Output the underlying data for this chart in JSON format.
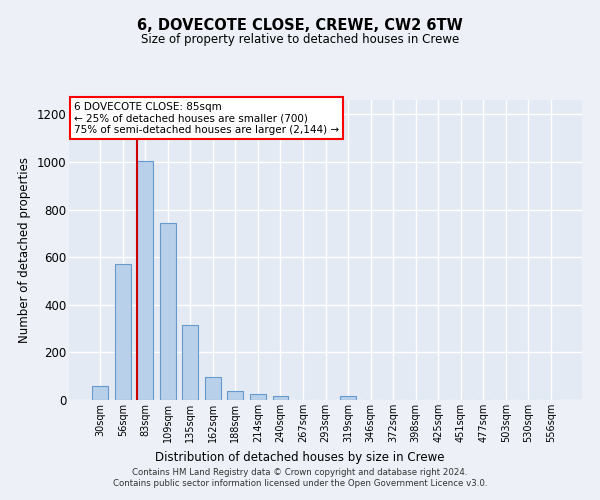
{
  "title1": "6, DOVECOTE CLOSE, CREWE, CW2 6TW",
  "title2": "Size of property relative to detached houses in Crewe",
  "xlabel": "Distribution of detached houses by size in Crewe",
  "ylabel": "Number of detached properties",
  "footer1": "Contains HM Land Registry data © Crown copyright and database right 2024.",
  "footer2": "Contains public sector information licensed under the Open Government Licence v3.0.",
  "annotation_title": "6 DOVECOTE CLOSE: 85sqm",
  "annotation_line2": "← 25% of detached houses are smaller (700)",
  "annotation_line3": "75% of semi-detached houses are larger (2,144) →",
  "bar_color": "#b8d0ea",
  "bar_edge_color": "#6699cc",
  "vline_color": "#cc0000",
  "vline_x_index": 2,
  "categories": [
    "30sqm",
    "56sqm",
    "83sqm",
    "109sqm",
    "135sqm",
    "162sqm",
    "188sqm",
    "214sqm",
    "240sqm",
    "267sqm",
    "293sqm",
    "319sqm",
    "346sqm",
    "372sqm",
    "398sqm",
    "425sqm",
    "451sqm",
    "477sqm",
    "503sqm",
    "530sqm",
    "556sqm"
  ],
  "values": [
    60,
    570,
    1005,
    745,
    315,
    95,
    38,
    25,
    15,
    0,
    0,
    15,
    0,
    0,
    0,
    0,
    0,
    0,
    0,
    0,
    0
  ],
  "ylim": [
    0,
    1260
  ],
  "yticks": [
    0,
    200,
    400,
    600,
    800,
    1000,
    1200
  ],
  "bg_color": "#edf1f7",
  "plot_bg_color": "#e4eaf4",
  "grid_color": "#ffffff",
  "figsize": [
    6.0,
    5.0
  ],
  "dpi": 100,
  "bar_width": 0.7
}
